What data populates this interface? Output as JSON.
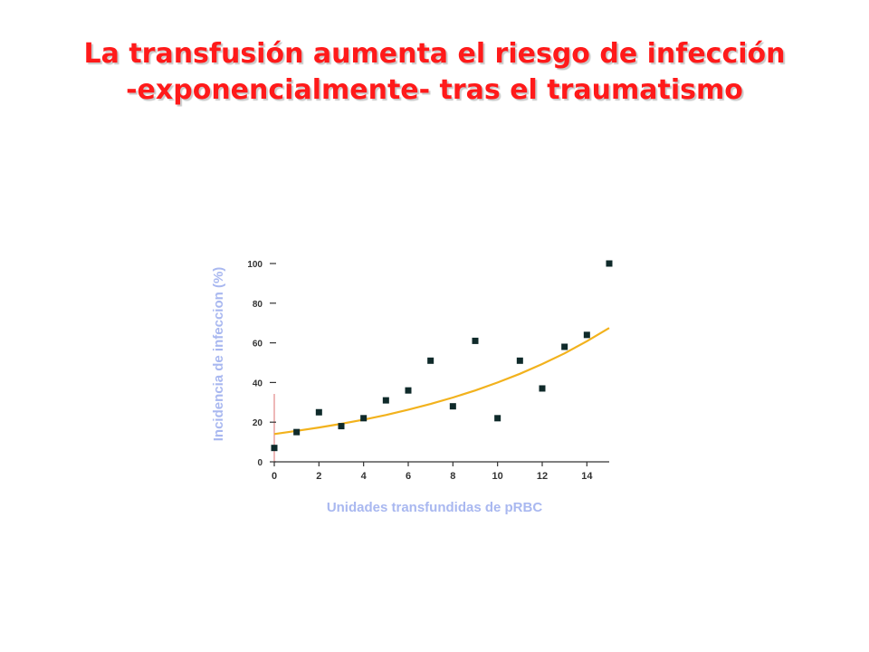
{
  "slide": {
    "title_line1": "La transfusión aumenta el riesgo de infección",
    "title_line2": "-exponencialmente- tras el traumatismo"
  },
  "colors": {
    "title": "#ff1a1a",
    "axis_label": "#a9b8f0",
    "points": "#0f2a2a",
    "trend": "#f2b21d",
    "axis": "#333333",
    "y_zero_axis": "#e8a0a0"
  },
  "chart_data": {
    "type": "scatter",
    "title": "",
    "xlabel": "Unidades transfundidas de pRBC",
    "ylabel": "Incidencia de infeccion (%)",
    "xlim": [
      0,
      15
    ],
    "ylim": [
      0,
      100
    ],
    "x_ticks": [
      "0",
      "2",
      "4",
      "6",
      "8",
      "10",
      "12",
      "14"
    ],
    "y_ticks": [
      "0",
      "20",
      "40",
      "60",
      "80",
      "100"
    ],
    "series": [
      {
        "x": [
          0,
          1,
          2,
          3,
          4,
          5,
          6,
          7,
          8,
          9,
          10,
          11,
          12,
          13,
          14,
          15
        ],
        "y": [
          7,
          15,
          25,
          18,
          22,
          31,
          36,
          51,
          28,
          61,
          22,
          51,
          37,
          58,
          64,
          100
        ]
      }
    ],
    "trendline": {
      "type": "exponential",
      "x": [
        0,
        1,
        2,
        3,
        4,
        5,
        6,
        7,
        8,
        9,
        10,
        11,
        12,
        13,
        14,
        15
      ],
      "y": [
        14,
        15.6,
        17.3,
        19.2,
        21.3,
        23.6,
        26.3,
        29.2,
        32.4,
        36,
        40,
        44.4,
        49.3,
        54.7,
        60.8,
        67.5
      ]
    },
    "grid": false,
    "legend": "none"
  }
}
